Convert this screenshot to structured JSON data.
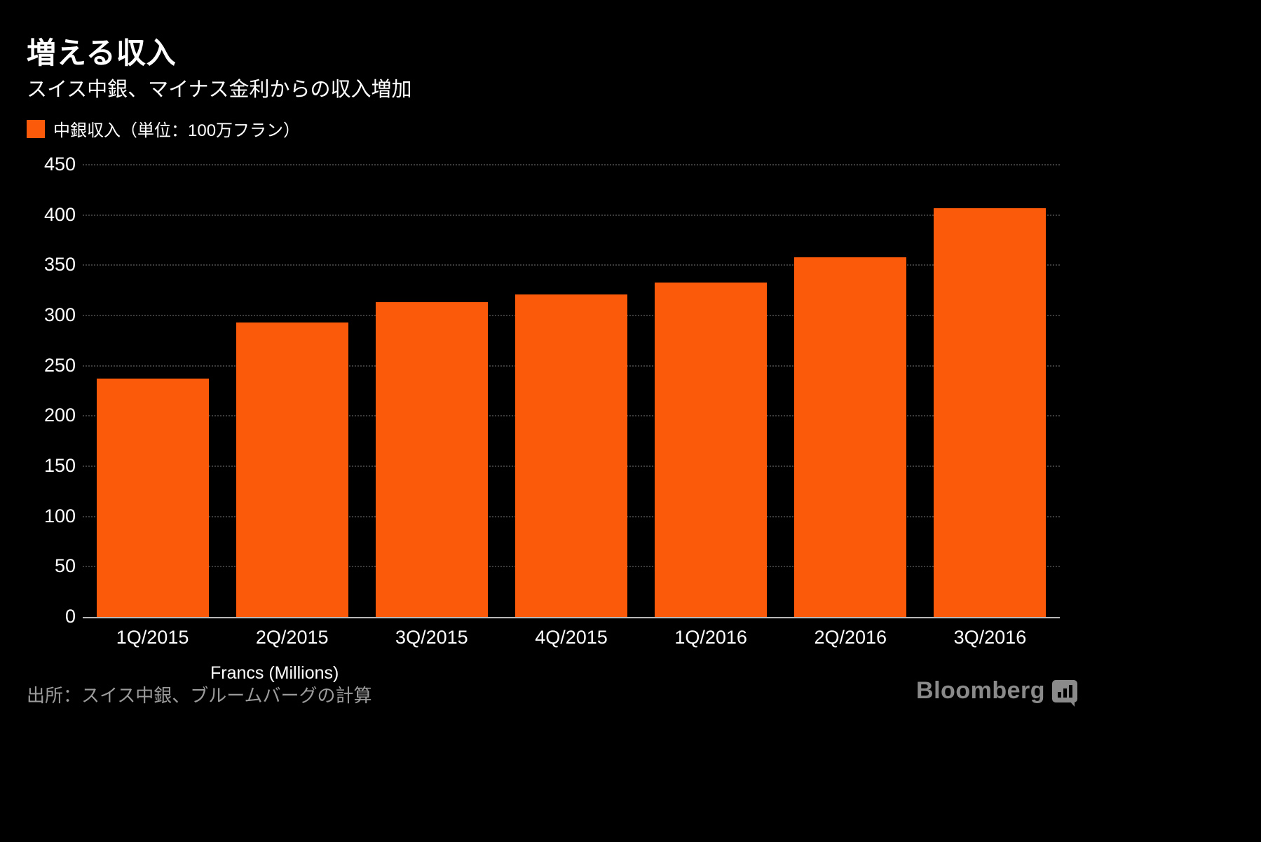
{
  "header": {
    "title": "増える収入",
    "subtitle": "スイス中銀、マイナス金利からの収入増加"
  },
  "legend": {
    "label": "中銀収入（単位：100万フラン）"
  },
  "footer": {
    "x_axis_title": "Francs (Millions)",
    "source": "出所：スイス中銀、ブルームバーグの計算",
    "branding": "Bloomberg"
  },
  "colors": {
    "bar": "#fa5a0a",
    "background": "#000000",
    "text": "#ffffff",
    "source_text": "#9b9b9b",
    "grid": "#3c3c3c"
  },
  "chart_data": {
    "type": "bar",
    "categories": [
      "1Q/2015",
      "2Q/2015",
      "3Q/2015",
      "4Q/2015",
      "1Q/2016",
      "2Q/2016",
      "3Q/2016"
    ],
    "values": [
      237,
      293,
      313,
      321,
      333,
      358,
      407
    ],
    "title": "増える収入",
    "subtitle": "スイス中銀、マイナス金利からの収入増加",
    "series_label": "中銀収入（単位：100万フラン）",
    "xlabel": "Francs (Millions)",
    "ylabel": "",
    "ylim": [
      0,
      450
    ],
    "ytick_step": 50,
    "grid": "horizontal-dotted",
    "legend_position": "top-left",
    "bar_color": "#fa5a0a"
  }
}
